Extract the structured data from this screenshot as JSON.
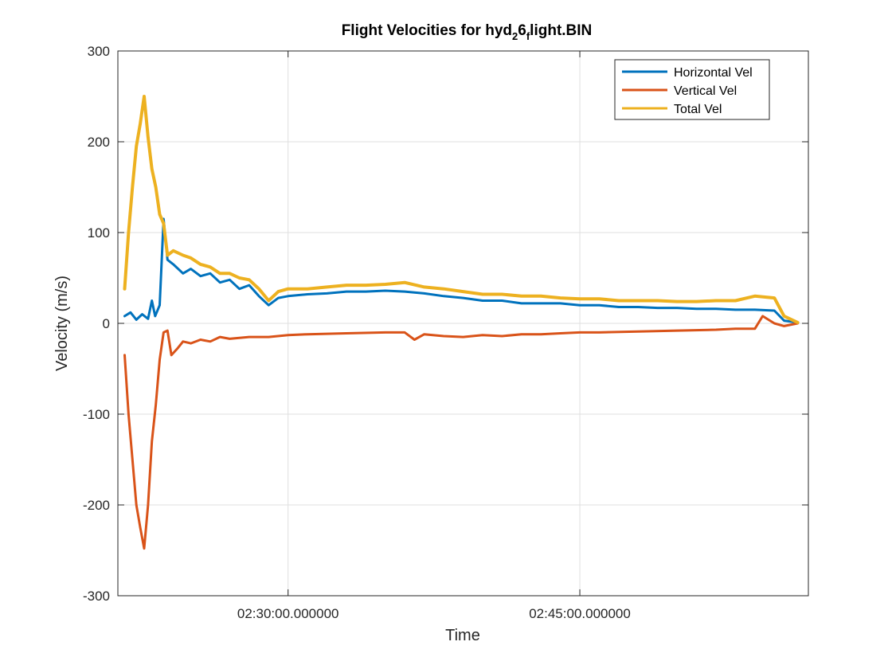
{
  "chart_data": {
    "type": "line",
    "title_parts": [
      "Flight Velocities for hyd",
      "2",
      "6",
      "f",
      "light.BIN"
    ],
    "xlabel": "Time",
    "ylabel": "Velocity (m/s)",
    "xlim": [
      "02:21:15",
      "02:56:45"
    ],
    "ylim": [
      -300,
      300
    ],
    "yticks": [
      "-300",
      "-200",
      "-100",
      "0",
      "100",
      "200",
      "300"
    ],
    "xticks": [
      {
        "value": "02:30:00",
        "label": "02:30:00.000000"
      },
      {
        "value": "02:45:00",
        "label": "02:45:00.000000"
      }
    ],
    "grid": true,
    "legend_position": "top-right",
    "series": [
      {
        "name": "Horizontal Vel",
        "color": "#0072BD",
        "points": [
          [
            "02:21:36",
            8
          ],
          [
            "02:21:54",
            12
          ],
          [
            "02:22:12",
            4
          ],
          [
            "02:22:30",
            10
          ],
          [
            "02:22:48",
            5
          ],
          [
            "02:23:00",
            25
          ],
          [
            "02:23:10",
            8
          ],
          [
            "02:23:24",
            20
          ],
          [
            "02:23:36",
            115
          ],
          [
            "02:23:48",
            70
          ],
          [
            "02:24:06",
            65
          ],
          [
            "02:24:36",
            55
          ],
          [
            "02:25:00",
            60
          ],
          [
            "02:25:30",
            52
          ],
          [
            "02:26:00",
            55
          ],
          [
            "02:26:30",
            45
          ],
          [
            "02:27:00",
            48
          ],
          [
            "02:27:30",
            38
          ],
          [
            "02:28:00",
            42
          ],
          [
            "02:28:30",
            30
          ],
          [
            "02:29:00",
            20
          ],
          [
            "02:29:30",
            28
          ],
          [
            "02:30:00",
            30
          ],
          [
            "02:31:00",
            32
          ],
          [
            "02:32:00",
            33
          ],
          [
            "02:33:00",
            35
          ],
          [
            "02:34:00",
            35
          ],
          [
            "02:35:00",
            36
          ],
          [
            "02:36:00",
            35
          ],
          [
            "02:37:00",
            33
          ],
          [
            "02:38:00",
            30
          ],
          [
            "02:39:00",
            28
          ],
          [
            "02:40:00",
            25
          ],
          [
            "02:41:00",
            25
          ],
          [
            "02:42:00",
            22
          ],
          [
            "02:43:00",
            22
          ],
          [
            "02:44:00",
            22
          ],
          [
            "02:45:00",
            20
          ],
          [
            "02:46:00",
            20
          ],
          [
            "02:47:00",
            18
          ],
          [
            "02:48:00",
            18
          ],
          [
            "02:49:00",
            17
          ],
          [
            "02:50:00",
            17
          ],
          [
            "02:51:00",
            16
          ],
          [
            "02:52:00",
            16
          ],
          [
            "02:53:00",
            15
          ],
          [
            "02:54:00",
            15
          ],
          [
            "02:55:00",
            14
          ],
          [
            "02:55:30",
            3
          ],
          [
            "02:56:12",
            1
          ]
        ]
      },
      {
        "name": "Vertical Vel",
        "color": "#D95319",
        "points": [
          [
            "02:21:36",
            -35
          ],
          [
            "02:21:48",
            -100
          ],
          [
            "02:22:00",
            -150
          ],
          [
            "02:22:12",
            -200
          ],
          [
            "02:22:24",
            -225
          ],
          [
            "02:22:36",
            -248
          ],
          [
            "02:22:48",
            -200
          ],
          [
            "02:23:00",
            -130
          ],
          [
            "02:23:12",
            -90
          ],
          [
            "02:23:24",
            -40
          ],
          [
            "02:23:36",
            -10
          ],
          [
            "02:23:48",
            -8
          ],
          [
            "02:24:00",
            -35
          ],
          [
            "02:24:18",
            -28
          ],
          [
            "02:24:36",
            -20
          ],
          [
            "02:25:00",
            -22
          ],
          [
            "02:25:30",
            -18
          ],
          [
            "02:26:00",
            -20
          ],
          [
            "02:26:30",
            -15
          ],
          [
            "02:27:00",
            -17
          ],
          [
            "02:28:00",
            -15
          ],
          [
            "02:29:00",
            -15
          ],
          [
            "02:30:00",
            -13
          ],
          [
            "02:31:00",
            -12
          ],
          [
            "02:33:00",
            -11
          ],
          [
            "02:35:00",
            -10
          ],
          [
            "02:36:00",
            -10
          ],
          [
            "02:36:30",
            -18
          ],
          [
            "02:37:00",
            -12
          ],
          [
            "02:38:00",
            -14
          ],
          [
            "02:39:00",
            -15
          ],
          [
            "02:40:00",
            -13
          ],
          [
            "02:41:00",
            -14
          ],
          [
            "02:42:00",
            -12
          ],
          [
            "02:43:00",
            -12
          ],
          [
            "02:44:00",
            -11
          ],
          [
            "02:45:00",
            -10
          ],
          [
            "02:46:00",
            -10
          ],
          [
            "02:48:00",
            -9
          ],
          [
            "02:50:00",
            -8
          ],
          [
            "02:52:00",
            -7
          ],
          [
            "02:53:00",
            -6
          ],
          [
            "02:54:00",
            -6
          ],
          [
            "02:54:24",
            8
          ],
          [
            "02:55:00",
            0
          ],
          [
            "02:55:30",
            -3
          ],
          [
            "02:56:12",
            0
          ]
        ]
      },
      {
        "name": "Total Vel",
        "color": "#EDB120",
        "points": [
          [
            "02:21:36",
            38
          ],
          [
            "02:21:48",
            100
          ],
          [
            "02:22:00",
            150
          ],
          [
            "02:22:12",
            195
          ],
          [
            "02:22:24",
            220
          ],
          [
            "02:22:36",
            250
          ],
          [
            "02:22:48",
            205
          ],
          [
            "02:23:00",
            170
          ],
          [
            "02:23:12",
            150
          ],
          [
            "02:23:24",
            120
          ],
          [
            "02:23:36",
            110
          ],
          [
            "02:23:48",
            75
          ],
          [
            "02:24:06",
            80
          ],
          [
            "02:24:36",
            75
          ],
          [
            "02:25:00",
            72
          ],
          [
            "02:25:30",
            65
          ],
          [
            "02:26:00",
            62
          ],
          [
            "02:26:30",
            55
          ],
          [
            "02:27:00",
            55
          ],
          [
            "02:27:30",
            50
          ],
          [
            "02:28:00",
            48
          ],
          [
            "02:28:30",
            38
          ],
          [
            "02:29:00",
            25
          ],
          [
            "02:29:30",
            35
          ],
          [
            "02:30:00",
            38
          ],
          [
            "02:31:00",
            38
          ],
          [
            "02:32:00",
            40
          ],
          [
            "02:33:00",
            42
          ],
          [
            "02:34:00",
            42
          ],
          [
            "02:35:00",
            43
          ],
          [
            "02:36:00",
            45
          ],
          [
            "02:37:00",
            40
          ],
          [
            "02:38:00",
            38
          ],
          [
            "02:39:00",
            35
          ],
          [
            "02:40:00",
            32
          ],
          [
            "02:41:00",
            32
          ],
          [
            "02:42:00",
            30
          ],
          [
            "02:43:00",
            30
          ],
          [
            "02:44:00",
            28
          ],
          [
            "02:45:00",
            27
          ],
          [
            "02:46:00",
            27
          ],
          [
            "02:47:00",
            25
          ],
          [
            "02:48:00",
            25
          ],
          [
            "02:49:00",
            25
          ],
          [
            "02:50:00",
            24
          ],
          [
            "02:51:00",
            24
          ],
          [
            "02:52:00",
            25
          ],
          [
            "02:53:00",
            25
          ],
          [
            "02:54:00",
            30
          ],
          [
            "02:55:00",
            28
          ],
          [
            "02:55:30",
            8
          ],
          [
            "02:56:12",
            1
          ]
        ]
      }
    ]
  }
}
